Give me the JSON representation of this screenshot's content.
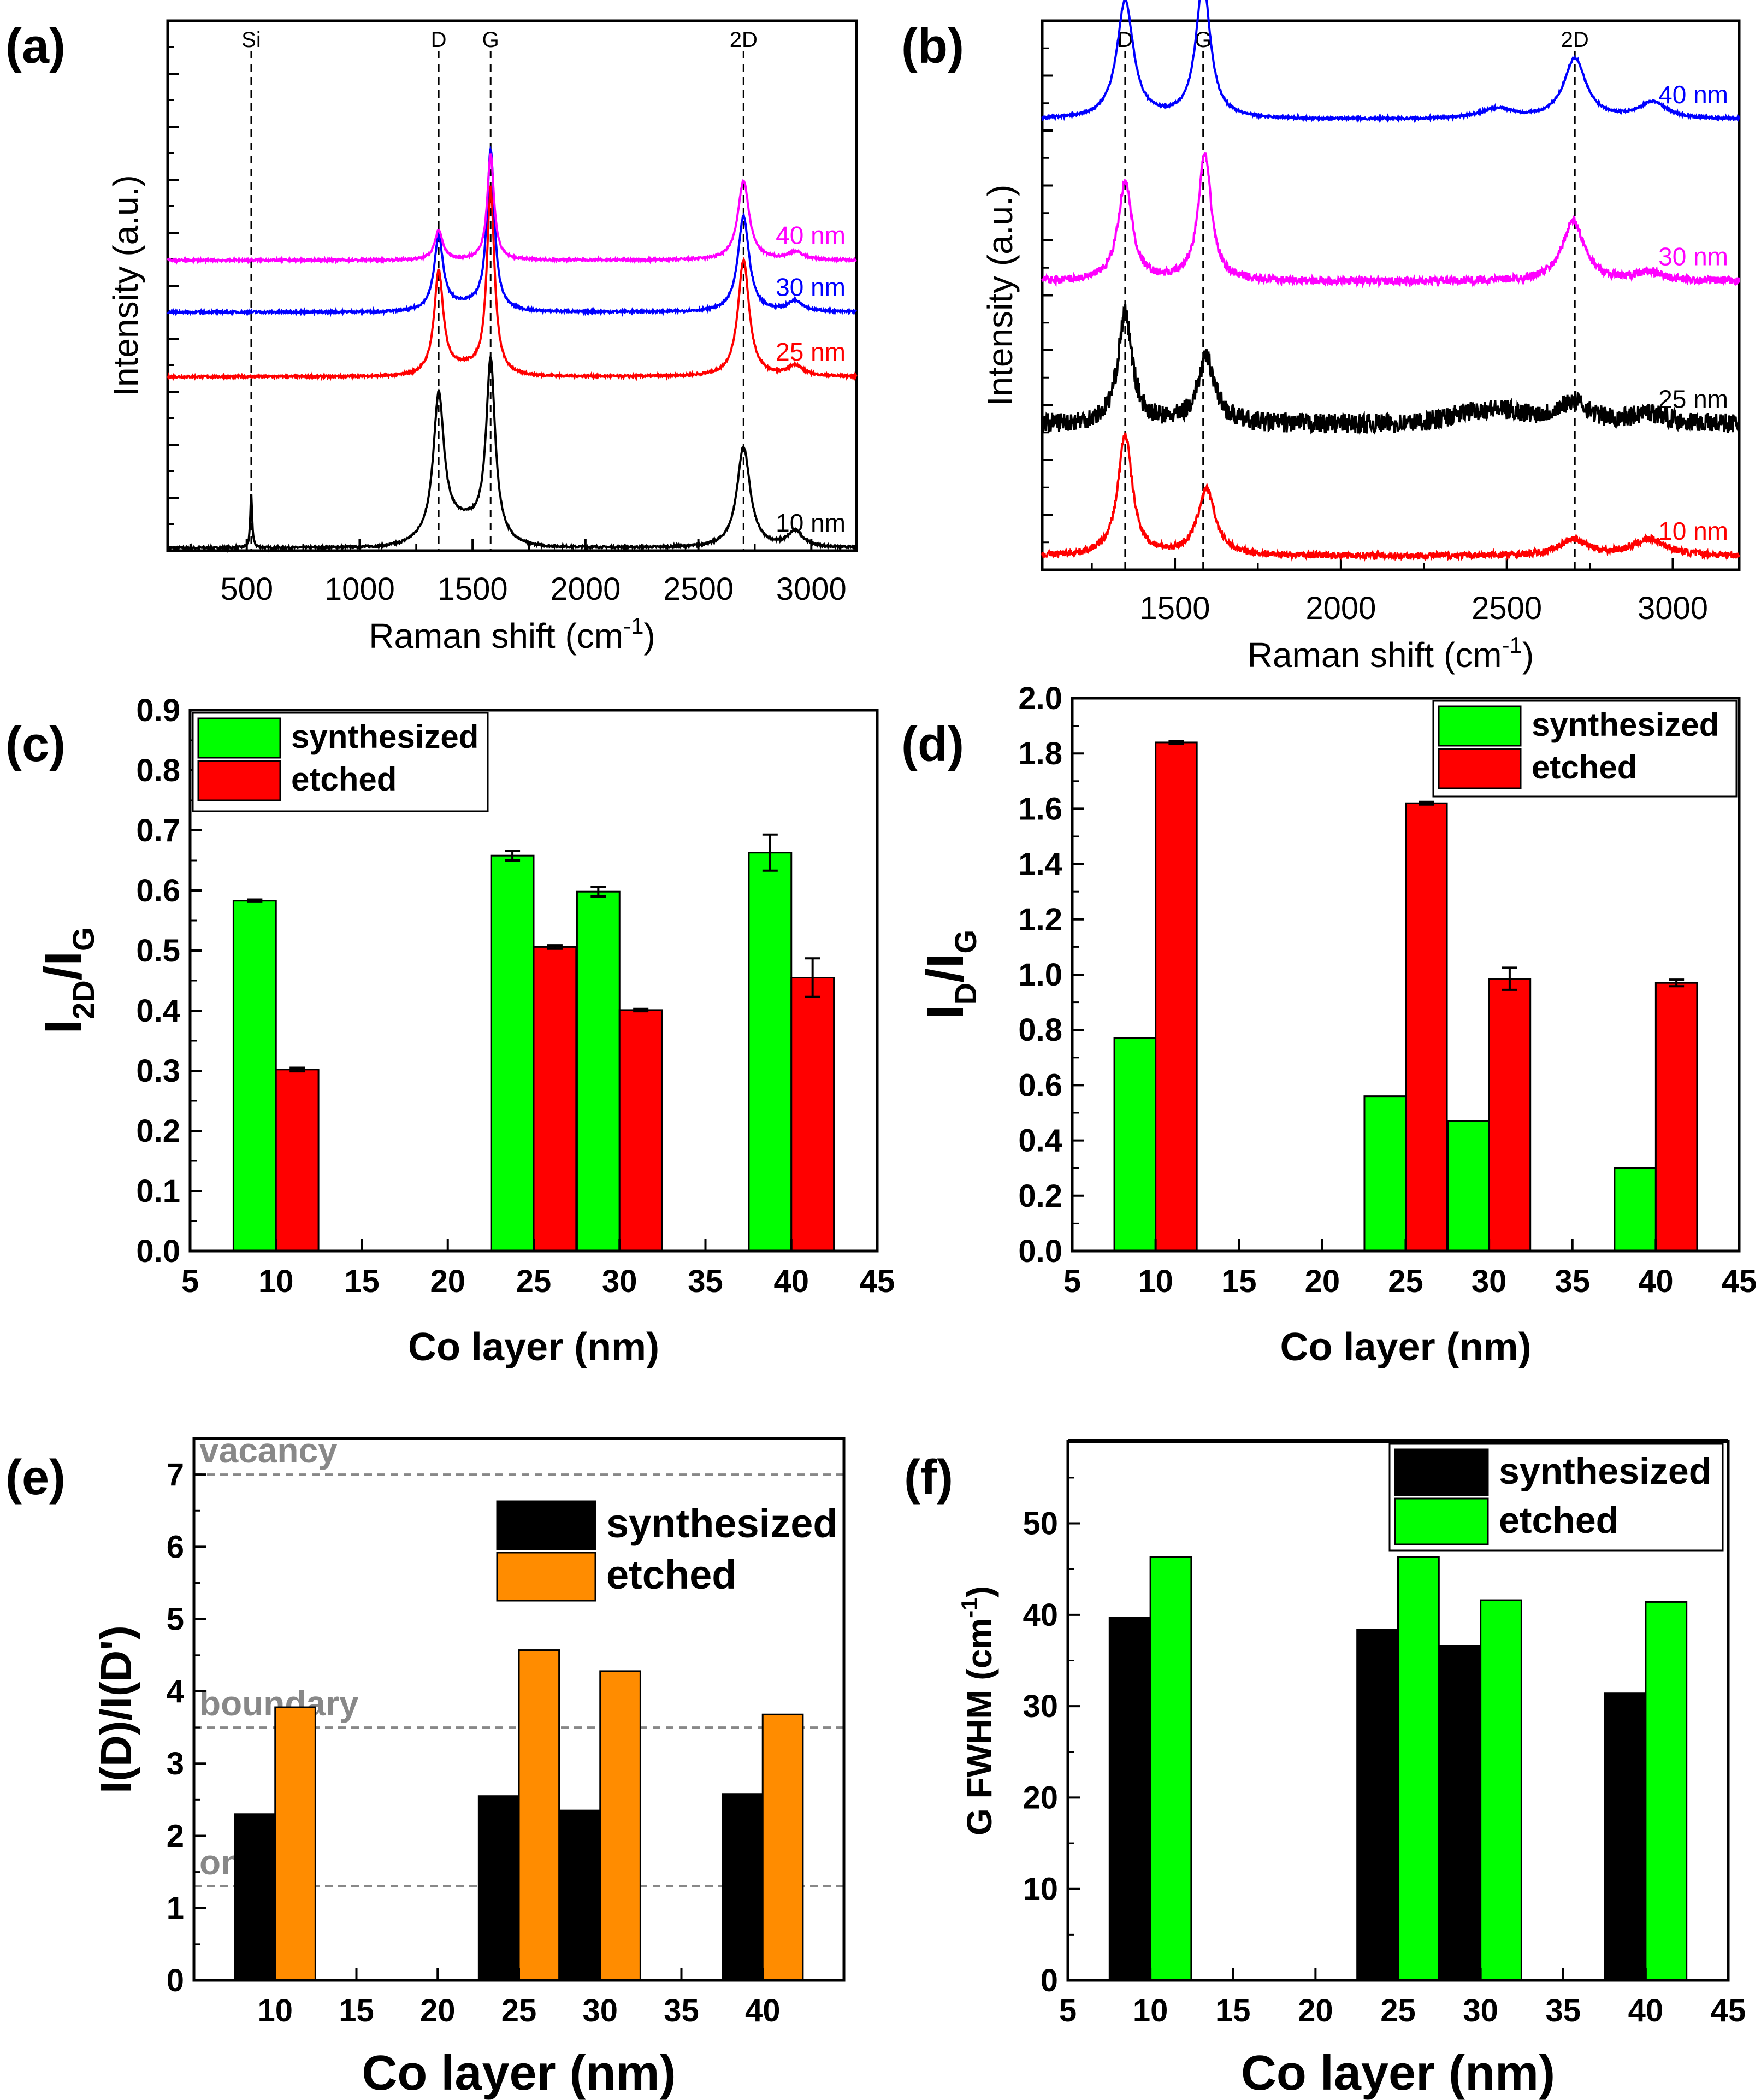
{
  "figure_labels": [
    "(a)",
    "(b)",
    "(c)",
    "(d)",
    "(e)",
    "(f)"
  ],
  "colors": {
    "black": "#000000",
    "red": "#ff0000",
    "blue": "#0000ff",
    "magenta": "#ff00ff",
    "green": "#00ff00",
    "orange": "#ff8c00",
    "gray": "#888888"
  },
  "chart_data": [
    {
      "id": "a",
      "type": "line",
      "panel_label": "(a)",
      "xlabel": "Raman shift (cm",
      "xlabel_sup": "-1",
      "xlabel_end": ")",
      "ylabel": "Intensity (a.u.)",
      "xlim": [
        150,
        3200
      ],
      "xticks": [
        500,
        1000,
        1500,
        2000,
        2500,
        3000
      ],
      "xtick_labels": [
        "500",
        "1000",
        "1500",
        "2000",
        "2500",
        "3000"
      ],
      "ylim": [
        0,
        10
      ],
      "yticks": [
        1,
        2,
        3,
        4,
        5,
        6,
        7,
        8,
        9,
        10
      ],
      "reference_lines": [
        {
          "label": "Si",
          "x": 520
        },
        {
          "label": "D",
          "x": 1350
        },
        {
          "label": "G",
          "x": 1580
        },
        {
          "label": "2D",
          "x": 2700
        }
      ],
      "series": [
        {
          "name": "10 nm",
          "color": "#000000",
          "baseline": 0.05,
          "noise": 0.02,
          "peaks": [
            {
              "x": 520,
              "h": 1.0,
              "w": 5
            },
            {
              "x": 1350,
              "h": 2.6,
              "w": 28
            },
            {
              "x": 1580,
              "h": 3.3,
              "w": 24
            },
            {
              "x": 2700,
              "h": 1.9,
              "w": 35
            },
            {
              "x": 2930,
              "h": 0.3,
              "w": 40
            }
          ],
          "broad": [
            {
              "x": 1450,
              "h": 0.45,
              "w": 170
            }
          ]
        },
        {
          "name": "25 nm",
          "color": "#ff0000",
          "baseline": 3.28,
          "noise": 0.02,
          "peaks": [
            {
              "x": 1350,
              "h": 1.9,
              "w": 24
            },
            {
              "x": 1580,
              "h": 3.5,
              "w": 20
            },
            {
              "x": 2700,
              "h": 2.2,
              "w": 30
            },
            {
              "x": 2930,
              "h": 0.2,
              "w": 40
            }
          ],
          "broad": [
            {
              "x": 1460,
              "h": 0.15,
              "w": 150
            }
          ]
        },
        {
          "name": "30 nm",
          "color": "#0000ff",
          "baseline": 4.5,
          "noise": 0.02,
          "peaks": [
            {
              "x": 1350,
              "h": 1.35,
              "w": 24
            },
            {
              "x": 1580,
              "h": 3.0,
              "w": 20
            },
            {
              "x": 2700,
              "h": 1.8,
              "w": 30
            },
            {
              "x": 2930,
              "h": 0.2,
              "w": 40
            }
          ],
          "broad": [
            {
              "x": 1460,
              "h": 0.12,
              "w": 150
            }
          ]
        },
        {
          "name": "40 nm",
          "color": "#ff00ff",
          "baseline": 5.48,
          "noise": 0.02,
          "peaks": [
            {
              "x": 1350,
              "h": 0.55,
              "w": 22
            },
            {
              "x": 1580,
              "h": 2.0,
              "w": 18
            },
            {
              "x": 2700,
              "h": 1.5,
              "w": 30
            },
            {
              "x": 2930,
              "h": 0.15,
              "w": 40
            }
          ],
          "broad": []
        }
      ]
    },
    {
      "id": "b",
      "type": "line",
      "panel_label": "(b)",
      "xlabel": "Raman shift (cm",
      "xlabel_sup": "-1",
      "xlabel_end": ")",
      "ylabel": "Intensity (a.u.)",
      "xlim": [
        1100,
        3200
      ],
      "xticks": [
        1500,
        2000,
        2500,
        3000
      ],
      "xtick_labels": [
        "1500",
        "2000",
        "2500",
        "3000"
      ],
      "ylim": [
        0,
        10
      ],
      "yticks": [
        1,
        2,
        3,
        4,
        5,
        6,
        7,
        8,
        9,
        10
      ],
      "reference_lines": [
        {
          "label": "D",
          "x": 1350
        },
        {
          "label": "G",
          "x": 1585
        },
        {
          "label": "2D",
          "x": 2705
        }
      ],
      "series": [
        {
          "name": "10 nm",
          "color": "#ff0000",
          "baseline": 0.25,
          "noise": 0.06,
          "peaks": [
            {
              "x": 1350,
              "h": 2.2,
              "w": 26
            },
            {
              "x": 1595,
              "h": 1.2,
              "w": 32
            },
            {
              "x": 2700,
              "h": 0.3,
              "w": 50
            },
            {
              "x": 2930,
              "h": 0.3,
              "w": 60
            }
          ],
          "broad": []
        },
        {
          "name": "25 nm",
          "color": "#000000",
          "baseline": 2.65,
          "noise": 0.18,
          "peaks": [
            {
              "x": 1350,
              "h": 2.0,
              "w": 26
            },
            {
              "x": 1595,
              "h": 1.2,
              "w": 32
            },
            {
              "x": 2700,
              "h": 0.4,
              "w": 60
            },
            {
              "x": 2930,
              "h": 0.2,
              "w": 60
            }
          ],
          "broad": [
            {
              "x": 2450,
              "h": 0.25,
              "w": 150
            }
          ]
        },
        {
          "name": "30 nm",
          "color": "#ff00ff",
          "baseline": 5.25,
          "noise": 0.07,
          "peaks": [
            {
              "x": 1350,
              "h": 1.8,
              "w": 26
            },
            {
              "x": 1590,
              "h": 2.3,
              "w": 24
            },
            {
              "x": 2700,
              "h": 1.1,
              "w": 40
            },
            {
              "x": 2930,
              "h": 0.15,
              "w": 50
            }
          ],
          "broad": []
        },
        {
          "name": "40 nm",
          "color": "#0000ff",
          "baseline": 8.2,
          "noise": 0.02,
          "peaks": [
            {
              "x": 1350,
              "h": 2.15,
              "w": 30
            },
            {
              "x": 1585,
              "h": 2.5,
              "w": 26
            },
            {
              "x": 2705,
              "h": 1.1,
              "w": 40
            },
            {
              "x": 2470,
              "h": 0.18,
              "w": 60
            },
            {
              "x": 2940,
              "h": 0.3,
              "w": 50
            }
          ],
          "broad": []
        }
      ]
    },
    {
      "id": "c",
      "type": "bar",
      "panel_label": "(c)",
      "xlabel": "Co layer (nm)",
      "ylabel_main": "I",
      "ylabel_sub1": "2D",
      "ylabel_mid": "/I",
      "ylabel_sub2": "G",
      "xlim": [
        5,
        45
      ],
      "xticks": [
        5,
        10,
        15,
        20,
        25,
        30,
        35,
        40,
        45
      ],
      "xtick_labels": [
        "5",
        "10",
        "15",
        "20",
        "25",
        "30",
        "35",
        "40",
        "45"
      ],
      "ylim": [
        0,
        0.9
      ],
      "yticks": [
        0,
        0.1,
        0.2,
        0.3,
        0.4,
        0.5,
        0.6,
        0.7,
        0.8,
        0.9
      ],
      "ytick_labels": [
        "0.0",
        "0.1",
        "0.2",
        "0.3",
        "0.4",
        "0.5",
        "0.6",
        "0.7",
        "0.8",
        "0.9"
      ],
      "categories": [
        10,
        25,
        30,
        40
      ],
      "series": [
        {
          "name": "synthesized",
          "color": "#00ff00",
          "values": [
            0.583,
            0.658,
            0.598,
            0.663
          ],
          "errors": [
            0.002,
            0.008,
            0.008,
            0.03
          ]
        },
        {
          "name": "etched",
          "color": "#ff0000",
          "values": [
            0.302,
            0.506,
            0.401,
            0.455
          ],
          "errors": [
            0.003,
            0.003,
            0.002,
            0.032
          ]
        }
      ]
    },
    {
      "id": "d",
      "type": "bar",
      "panel_label": "(d)",
      "xlabel": "Co layer (nm)",
      "ylabel_main": "I",
      "ylabel_sub1": "D",
      "ylabel_mid": "/I",
      "ylabel_sub2": "G",
      "xlim": [
        5,
        45
      ],
      "xticks": [
        5,
        10,
        15,
        20,
        25,
        30,
        35,
        40,
        45
      ],
      "xtick_labels": [
        "5",
        "10",
        "15",
        "20",
        "25",
        "30",
        "35",
        "40",
        "45"
      ],
      "ylim": [
        0,
        2.0
      ],
      "yticks": [
        0,
        0.2,
        0.4,
        0.6,
        0.8,
        1.0,
        1.2,
        1.4,
        1.6,
        1.8,
        2.0
      ],
      "ytick_labels": [
        "0.0",
        "0.2",
        "0.4",
        "0.6",
        "0.8",
        "1.0",
        "1.2",
        "1.4",
        "1.6",
        "1.8",
        "2.0"
      ],
      "categories": [
        10,
        25,
        30,
        40
      ],
      "series": [
        {
          "name": "synthesized",
          "color": "#00ff00",
          "values": [
            0.77,
            0.56,
            0.47,
            0.3
          ],
          "errors": [
            0,
            0,
            0,
            0
          ]
        },
        {
          "name": "etched",
          "color": "#ff0000",
          "values": [
            1.84,
            1.62,
            0.985,
            0.97
          ],
          "errors": [
            0.005,
            0.005,
            0.04,
            0.012
          ]
        }
      ]
    },
    {
      "id": "e",
      "type": "bar",
      "panel_label": "(e)",
      "xlabel": "Co layer (nm)",
      "ylabel": "I(D)/I(D')",
      "xlim": [
        5,
        45
      ],
      "xticks": [
        10,
        15,
        20,
        25,
        30,
        35,
        40
      ],
      "xtick_labels": [
        "10",
        "15",
        "20",
        "25",
        "30",
        "35",
        "40"
      ],
      "ylim": [
        0,
        7.5
      ],
      "yticks": [
        0,
        1,
        2,
        3,
        4,
        5,
        6,
        7
      ],
      "ytick_labels": [
        "0",
        "1",
        "2",
        "3",
        "4",
        "5",
        "6",
        "7"
      ],
      "categories": [
        10,
        25,
        30,
        40
      ],
      "series": [
        {
          "name": "synthesized",
          "color": "#000000",
          "values": [
            2.3,
            2.55,
            2.35,
            2.58
          ]
        },
        {
          "name": "etched",
          "color": "#ff8c00",
          "values": [
            3.78,
            4.57,
            4.28,
            3.68
          ]
        }
      ],
      "reference_lines": [
        {
          "label": "vacancy",
          "y": 7.0
        },
        {
          "label": "boundary",
          "y": 3.5
        },
        {
          "label": "on-site",
          "y": 1.3
        }
      ]
    },
    {
      "id": "f",
      "type": "bar",
      "panel_label": "(f)",
      "xlabel": "Co layer (nm)",
      "ylabel": "G FWHM (cm",
      "ylabel_sup": "-1",
      "ylabel_end": ")",
      "xlim": [
        5,
        45
      ],
      "xticks": [
        5,
        10,
        15,
        20,
        25,
        30,
        35,
        40,
        45
      ],
      "xtick_labels": [
        "5",
        "10",
        "15",
        "20",
        "25",
        "30",
        "35",
        "40",
        "45"
      ],
      "ylim": [
        0,
        59
      ],
      "yticks": [
        0,
        10,
        20,
        30,
        40,
        50
      ],
      "ytick_labels": [
        "0",
        "10",
        "20",
        "30",
        "40",
        "50"
      ],
      "categories": [
        10,
        25,
        30,
        40
      ],
      "series": [
        {
          "name": "synthesized",
          "color": "#000000",
          "values": [
            39.7,
            38.4,
            36.6,
            31.4
          ]
        },
        {
          "name": "etched",
          "color": "#00ff00",
          "values": [
            46.3,
            46.3,
            41.6,
            41.4
          ]
        }
      ]
    }
  ]
}
